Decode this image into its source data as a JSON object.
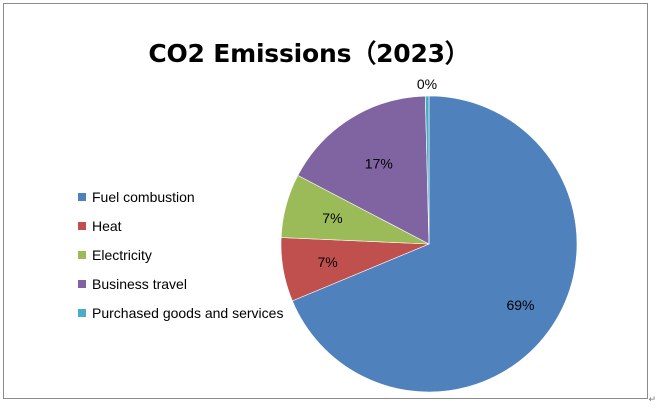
{
  "chart_data": {
    "type": "pie",
    "title": "CO2 Emissions（2023）",
    "categories": [
      "Fuel combustion",
      "Heat",
      "Electricity",
      "Business travel",
      "Purchased goods and services"
    ],
    "values": [
      69,
      7,
      7,
      17,
      0.4
    ],
    "data_labels": [
      "69%",
      "7%",
      "7%",
      "17%",
      "0%"
    ],
    "colors": [
      "#4f81bd",
      "#c0504d",
      "#9bbb59",
      "#8064a2",
      "#4bacc6"
    ],
    "start_angle_deg": 0,
    "direction": "clockwise",
    "legend_position": "left"
  },
  "corner_mark": "↵"
}
